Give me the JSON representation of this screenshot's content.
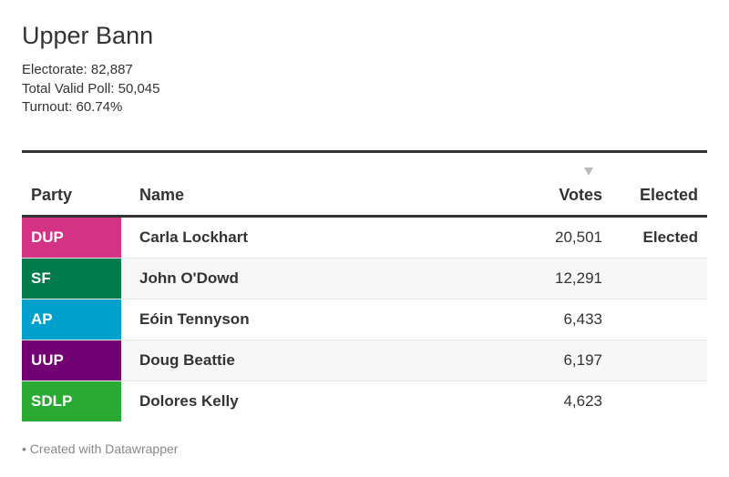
{
  "title": "Upper Bann",
  "stats": {
    "electorate": "Electorate: 82,887",
    "total_valid_poll": "Total Valid Poll: 50,045",
    "turnout": "Turnout: 60.74%"
  },
  "chart_data": {
    "type": "table",
    "columns": [
      "Party",
      "Name",
      "Votes",
      "Elected"
    ],
    "sort": {
      "column": "Votes",
      "direction": "descending",
      "icon": "sort-down-icon"
    },
    "rows": [
      {
        "party": "DUP",
        "name": "Carla Lockhart",
        "votes": "20,501",
        "elected": "Elected",
        "color": "#d33384"
      },
      {
        "party": "SF",
        "name": "John O'Dowd",
        "votes": "12,291",
        "elected": "",
        "color": "#017a4c"
      },
      {
        "party": "AP",
        "name": "Eóin Tennyson",
        "votes": "6,433",
        "elected": "",
        "color": "#00a0cc"
      },
      {
        "party": "UUP",
        "name": "Doug Beattie",
        "votes": "6,197",
        "elected": "",
        "color": "#720073"
      },
      {
        "party": "SDLP",
        "name": "Dolores Kelly",
        "votes": "4,623",
        "elected": "",
        "color": "#2aaa32"
      }
    ]
  },
  "footer": {
    "credit": "• Created with Datawrapper"
  }
}
